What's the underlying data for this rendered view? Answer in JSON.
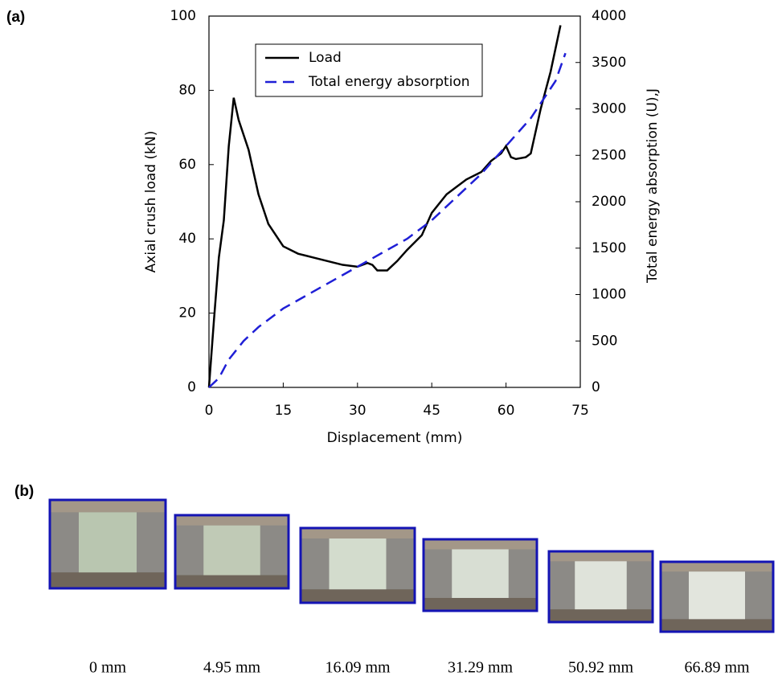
{
  "chart_data": {
    "type": "line",
    "xlabel": "Displacement (mm)",
    "ylabel": "Axial crush load (kN)",
    "y2label": "Total energy absorption (U),J",
    "xlim": [
      0,
      75
    ],
    "xticks": [
      0,
      15,
      30,
      45,
      60,
      75
    ],
    "ylim": [
      0,
      100
    ],
    "yticks": [
      0,
      20,
      40,
      60,
      80,
      100
    ],
    "y2lim": [
      0,
      4000
    ],
    "y2ticks": [
      0,
      500,
      1000,
      1500,
      2000,
      2500,
      3000,
      3500,
      4000
    ],
    "legend": "upper-center",
    "series": [
      {
        "name": "Load",
        "color": "#000000",
        "style": "solid",
        "x": [
          0,
          1,
          2,
          3,
          4,
          5,
          6,
          8,
          10,
          12,
          15,
          18,
          21,
          24,
          27,
          30,
          32,
          33,
          34,
          36,
          38,
          40,
          43,
          45,
          48,
          50,
          52,
          55,
          57,
          59,
          60,
          61,
          62,
          64,
          65,
          67,
          69,
          71
        ],
        "values": [
          0,
          18,
          35,
          45,
          65,
          78,
          72,
          64,
          52,
          44,
          38,
          36,
          35,
          34,
          33,
          32.5,
          33.5,
          33,
          31.5,
          31.5,
          34,
          37,
          41,
          47,
          52,
          54,
          56,
          58,
          61,
          63,
          65,
          62,
          61.5,
          62,
          63,
          75,
          85,
          97.5
        ]
      },
      {
        "name": "Total energy absorption",
        "color": "#1f1fd6",
        "style": "dashed",
        "axis": "y2",
        "x": [
          0,
          2,
          4,
          7,
          10,
          15,
          20,
          25,
          30,
          35,
          40,
          45,
          50,
          55,
          60,
          65,
          70,
          72
        ],
        "values": [
          0,
          100,
          300,
          500,
          650,
          850,
          1000,
          1150,
          1300,
          1450,
          1600,
          1800,
          2050,
          2300,
          2600,
          2900,
          3300,
          3600
        ]
      }
    ]
  },
  "figure": {
    "label_a": "(a)",
    "label_b": "(b)",
    "photos": [
      {
        "caption": "0 mm"
      },
      {
        "caption": "4.95 mm"
      },
      {
        "caption": "16.09 mm"
      },
      {
        "caption": "31.29 mm"
      },
      {
        "caption": "50.92 mm"
      },
      {
        "caption": "66.89 mm"
      }
    ]
  }
}
